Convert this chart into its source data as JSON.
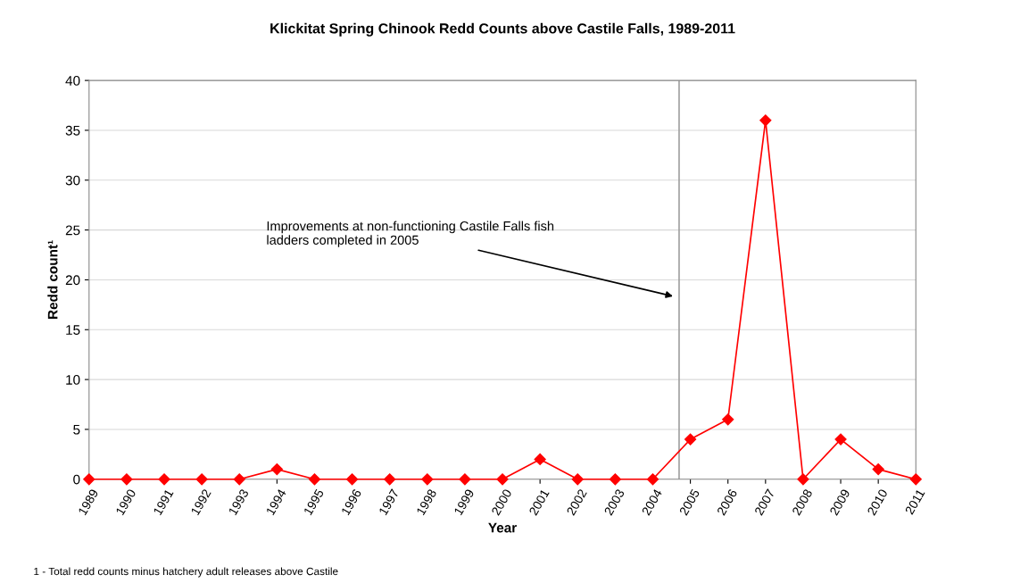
{
  "chart_data": {
    "type": "line",
    "title": "Klickitat Spring Chinook Redd Counts above Castile Falls, 1989-2011",
    "xlabel": "Year",
    "ylabel": "Redd count¹",
    "x": [
      1989,
      1990,
      1991,
      1992,
      1993,
      1994,
      1995,
      1996,
      1997,
      1998,
      1999,
      2000,
      2001,
      2002,
      2003,
      2004,
      2005,
      2006,
      2007,
      2008,
      2009,
      2010,
      2011
    ],
    "series": [
      {
        "color": "#ff0000",
        "values": [
          0,
          0,
          0,
          0,
          0,
          1,
          0,
          0,
          0,
          0,
          0,
          0,
          2,
          0,
          0,
          0,
          4,
          6,
          36,
          0,
          4,
          1,
          0
        ]
      }
    ],
    "xlim": [
      1989,
      2011
    ],
    "xticks": [
      1989,
      1990,
      1991,
      1992,
      1993,
      1994,
      1995,
      1996,
      1997,
      1998,
      1999,
      2000,
      2001,
      2002,
      2003,
      2004,
      2005,
      2006,
      2007,
      2008,
      2009,
      2010,
      2011
    ],
    "ylim": [
      0,
      40
    ],
    "yticks": [
      0,
      5,
      10,
      15,
      20,
      25,
      30,
      35,
      40
    ],
    "grid": "y",
    "marker": "diamond",
    "line_style": "solid",
    "legend": false,
    "ref_lines": [
      {
        "axis": "x",
        "value": 2004.7,
        "color": "#a0a0a0",
        "line_style": "solid"
      }
    ],
    "annotations": [
      {
        "text": "Improvements at non-functioning Castile Falls fish\nladders completed in 2005",
        "x": 2004.6,
        "y": 18.3
      },
      "1 - Total redd counts minus hatchery adult releases above Castile"
    ]
  }
}
